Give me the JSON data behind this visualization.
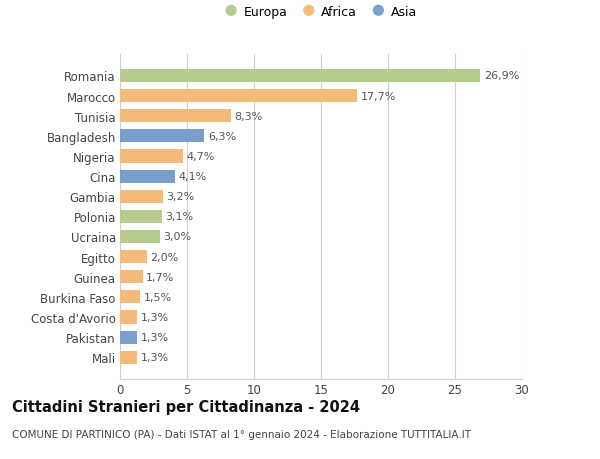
{
  "countries": [
    "Romania",
    "Marocco",
    "Tunisia",
    "Bangladesh",
    "Nigeria",
    "Cina",
    "Gambia",
    "Polonia",
    "Ucraina",
    "Egitto",
    "Guinea",
    "Burkina Faso",
    "Costa d'Avorio",
    "Pakistan",
    "Mali"
  ],
  "values": [
    26.9,
    17.7,
    8.3,
    6.3,
    4.7,
    4.1,
    3.2,
    3.1,
    3.0,
    2.0,
    1.7,
    1.5,
    1.3,
    1.3,
    1.3
  ],
  "labels": [
    "26,9%",
    "17,7%",
    "8,3%",
    "6,3%",
    "4,7%",
    "4,1%",
    "3,2%",
    "3,1%",
    "3,0%",
    "2,0%",
    "1,7%",
    "1,5%",
    "1,3%",
    "1,3%",
    "1,3%"
  ],
  "continents": [
    "Europa",
    "Africa",
    "Africa",
    "Asia",
    "Africa",
    "Asia",
    "Africa",
    "Europa",
    "Europa",
    "Africa",
    "Africa",
    "Africa",
    "Africa",
    "Asia",
    "Africa"
  ],
  "colors": {
    "Europa": "#b5cc8e",
    "Africa": "#f5b97a",
    "Asia": "#7b9fcb"
  },
  "legend_entries": [
    "Europa",
    "Africa",
    "Asia"
  ],
  "title": "Cittadini Stranieri per Cittadinanza - 2024",
  "subtitle": "COMUNE DI PARTINICO (PA) - Dati ISTAT al 1° gennaio 2024 - Elaborazione TUTTITALIA.IT",
  "xlim": [
    0,
    30
  ],
  "xticks": [
    0,
    5,
    10,
    15,
    20,
    25,
    30
  ],
  "background_color": "#ffffff",
  "grid_color": "#d0d0d0",
  "bar_height": 0.65,
  "title_fontsize": 10.5,
  "subtitle_fontsize": 7.5,
  "tick_fontsize": 8.5,
  "label_fontsize": 8
}
